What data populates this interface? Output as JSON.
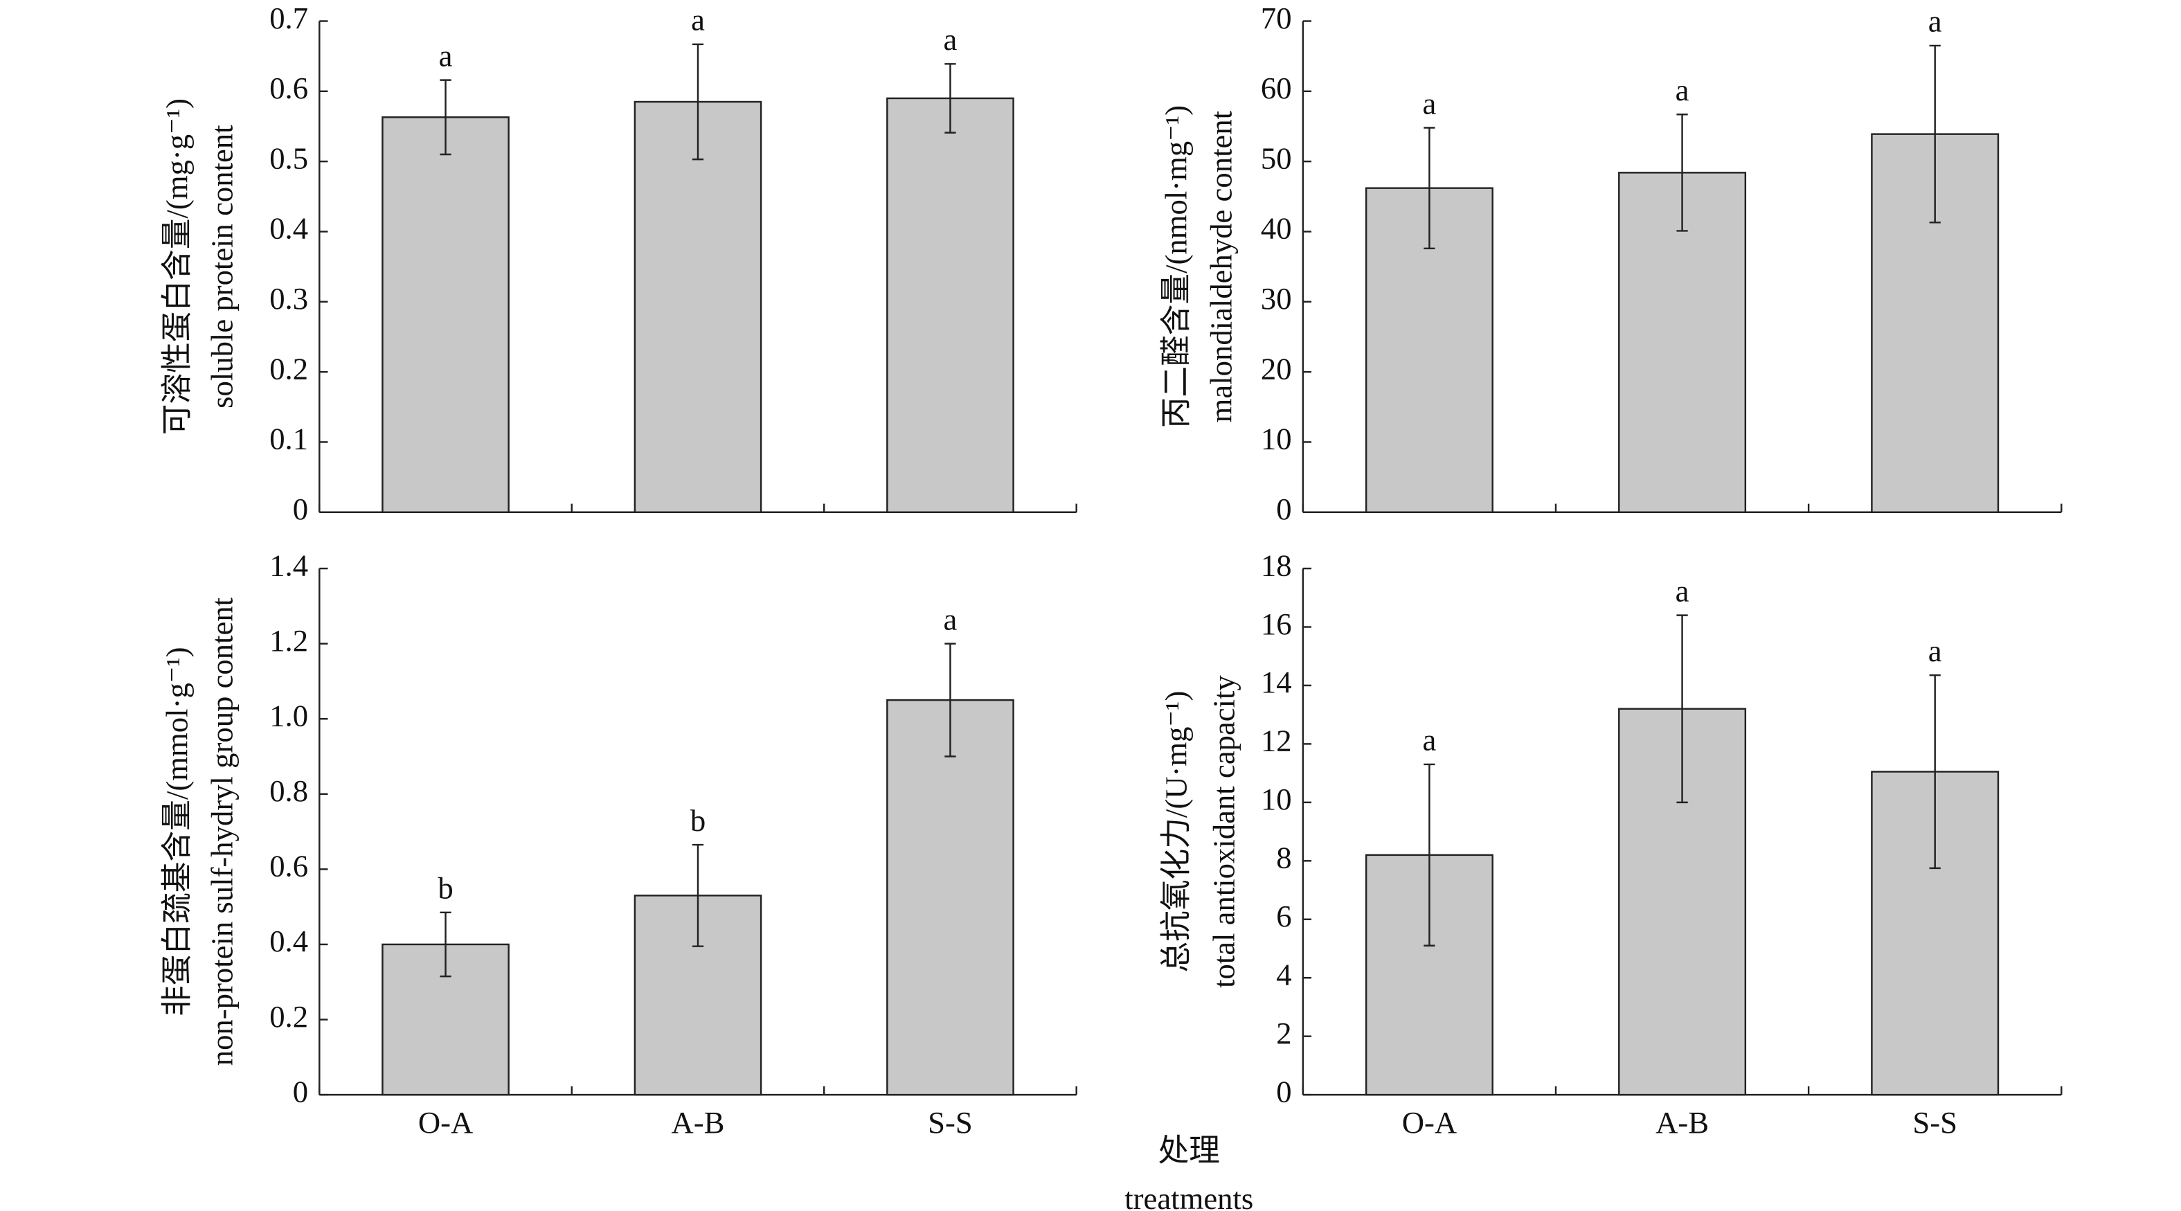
{
  "xlabel": "处理",
  "xlabel_en": "treatments",
  "chart_data": [
    {
      "type": "bar",
      "ylabel": "可溶性蛋白含量/(mg·g⁻¹)",
      "ylabel_en": "soluble protein content",
      "categories": [
        null,
        null,
        null
      ],
      "values": [
        0.563,
        0.585,
        0.59
      ],
      "errors": [
        0.053,
        0.082,
        0.049
      ],
      "annotations": [
        "a",
        "a",
        "a"
      ],
      "color": "#c8c8c8",
      "ylim": [
        0,
        0.7
      ],
      "yticks": [
        0,
        0.1,
        0.2,
        0.3,
        0.4,
        0.5,
        0.6,
        0.7
      ]
    },
    {
      "type": "bar",
      "ylabel": "丙二醛含量/(nmol·mg⁻¹)",
      "ylabel_en": "malondialdehyde content",
      "categories": [
        null,
        null,
        null
      ],
      "values": [
        46.2,
        48.4,
        53.9
      ],
      "errors": [
        8.6,
        8.3,
        12.6
      ],
      "annotations": [
        "a",
        "a",
        "a"
      ],
      "color": "#c8c8c8",
      "ylim": [
        0,
        70
      ],
      "yticks": [
        0,
        10,
        20,
        30,
        40,
        50,
        60,
        70
      ]
    },
    {
      "type": "bar",
      "ylabel": "非蛋白巯基含量/(mmol·g⁻¹)",
      "ylabel_en": "non-protein sulf-hydryl group content",
      "categories": [
        "O-A",
        "A-B",
        "S-S"
      ],
      "values": [
        0.4,
        0.53,
        1.05
      ],
      "errors": [
        0.085,
        0.135,
        0.15
      ],
      "annotations": [
        "b",
        "b",
        "a"
      ],
      "color": "#c8c8c8",
      "ylim": [
        0,
        1.4
      ],
      "yticks": [
        0,
        0.2,
        0.4,
        0.6,
        0.8,
        {
          "value": 1,
          "label": "1.0"
        },
        1.2,
        1.4
      ]
    },
    {
      "type": "bar",
      "ylabel": "总抗氧化力/(U·mg⁻¹)",
      "ylabel_en": "total antioxidant capacity",
      "categories": [
        "O-A",
        "A-B",
        "S-S"
      ],
      "values": [
        8.2,
        13.2,
        11.05
      ],
      "errors": [
        3.1,
        3.2,
        3.3
      ],
      "annotations": [
        "a",
        "a",
        "a"
      ],
      "color": "#c8c8c8",
      "ylim": [
        0,
        18
      ],
      "yticks": [
        0,
        2,
        4,
        6,
        8,
        10,
        12,
        14,
        16,
        18
      ]
    }
  ]
}
